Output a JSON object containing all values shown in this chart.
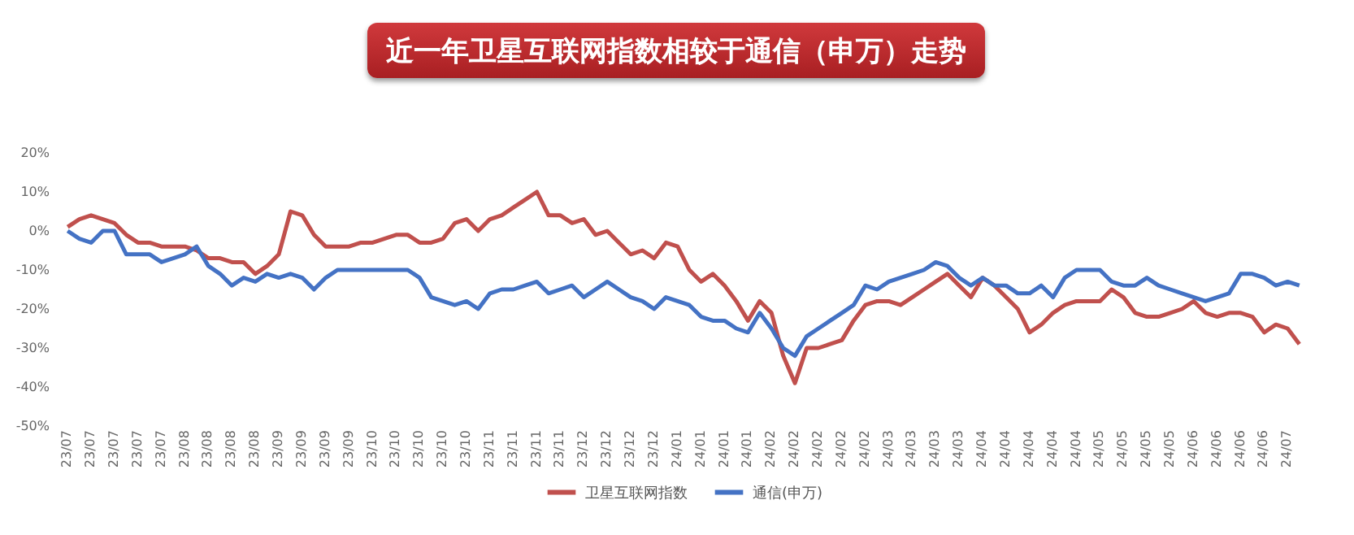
{
  "chart_data": {
    "type": "line",
    "title": "近一年卫星互联网指数相较于通信（申万）走势",
    "categories": [
      "23/07",
      null,
      "23/07",
      null,
      "23/07",
      null,
      "23/07",
      null,
      "23/07",
      null,
      "23/08",
      null,
      "23/08",
      null,
      "23/08",
      null,
      "23/08",
      null,
      "23/09",
      null,
      "23/09",
      null,
      "23/09",
      null,
      "23/09",
      null,
      "23/10",
      null,
      "23/10",
      null,
      "23/10",
      null,
      "23/10",
      null,
      "23/10",
      null,
      "23/11",
      null,
      "23/11",
      null,
      "23/11",
      null,
      "23/11",
      null,
      "23/12",
      null,
      "23/12",
      null,
      "23/12",
      null,
      "23/12",
      null,
      "24/01",
      null,
      "24/01",
      null,
      "24/01",
      null,
      "24/01",
      null,
      "24/02",
      null,
      "24/02",
      null,
      "24/02",
      null,
      "24/02",
      null,
      "24/02",
      null,
      "24/03",
      null,
      "24/03",
      null,
      "24/03",
      null,
      "24/03",
      null,
      "24/04",
      null,
      "24/04",
      null,
      "24/04",
      null,
      "24/04",
      null,
      "24/04",
      null,
      "24/05",
      null,
      "24/05",
      null,
      "24/05",
      null,
      "24/05",
      null,
      "24/06",
      null,
      "24/06",
      null,
      "24/06",
      null,
      "24/06",
      null,
      "24/07",
      null
    ],
    "series": [
      {
        "name": "卫星互联网指数",
        "color": "#c0504d",
        "values": [
          1,
          3,
          4,
          3,
          2,
          -1,
          -3,
          -3,
          -4,
          -4,
          -4,
          -5,
          -7,
          -7,
          -8,
          -8,
          -11,
          -9,
          -6,
          5,
          4,
          -1,
          -4,
          -4,
          -4,
          -3,
          -3,
          -2,
          -1,
          -1,
          -3,
          -3,
          -2,
          2,
          3,
          0,
          3,
          4,
          6,
          8,
          10,
          4,
          4,
          2,
          3,
          -1,
          0,
          -3,
          -6,
          -5,
          -7,
          -3,
          -4,
          -10,
          -13,
          -11,
          -14,
          -18,
          -23,
          -18,
          -21,
          -32,
          -39,
          -30,
          -30,
          -29,
          -28,
          -23,
          -19,
          -18,
          -18,
          -19,
          -17,
          -15,
          -13,
          -11,
          -14,
          -17,
          -12,
          -14,
          -17,
          -20,
          -26,
          -24,
          -21,
          -19,
          -18,
          -18,
          -18,
          -15,
          -17,
          -21,
          -22,
          -22,
          -21,
          -20,
          -18,
          -21,
          -22,
          -21,
          -21,
          -22,
          -26,
          -24,
          -25,
          -29
        ]
      },
      {
        "name": "通信(申万)",
        "color": "#4472c4",
        "values": [
          0,
          -2,
          -3,
          0,
          0,
          -6,
          -6,
          -6,
          -8,
          -7,
          -6,
          -4,
          -9,
          -11,
          -14,
          -12,
          -13,
          -11,
          -12,
          -11,
          -12,
          -15,
          -12,
          -10,
          -10,
          -10,
          -10,
          -10,
          -10,
          -10,
          -12,
          -17,
          -18,
          -19,
          -18,
          -20,
          -16,
          -15,
          -15,
          -14,
          -13,
          -16,
          -15,
          -14,
          -17,
          -15,
          -13,
          -15,
          -17,
          -18,
          -20,
          -17,
          -18,
          -19,
          -22,
          -23,
          -23,
          -25,
          -26,
          -21,
          -25,
          -30,
          -32,
          -27,
          -25,
          -23,
          -21,
          -19,
          -14,
          -15,
          -13,
          -12,
          -11,
          -10,
          -8,
          -9,
          -12,
          -14,
          -12,
          -14,
          -14,
          -16,
          -16,
          -14,
          -17,
          -12,
          -10,
          -10,
          -10,
          -13,
          -14,
          -14,
          -12,
          -14,
          -15,
          -16,
          -17,
          -18,
          -17,
          -16,
          -11,
          -11,
          -12,
          -14,
          -13,
          -14
        ]
      }
    ],
    "ylim": [
      -50,
      20
    ],
    "yticks": [
      {
        "value": -50,
        "label": "-50%"
      },
      {
        "value": -40,
        "label": "-40%"
      },
      {
        "value": -30,
        "label": "-30%"
      },
      {
        "value": -20,
        "label": "-20%"
      },
      {
        "value": -10,
        "label": "-10%"
      },
      {
        "value": 0,
        "label": "0%"
      },
      {
        "value": 10,
        "label": "10%"
      },
      {
        "value": 20,
        "label": "20%"
      }
    ],
    "legend": "bottom",
    "marker": "none",
    "line_style": "solid"
  }
}
